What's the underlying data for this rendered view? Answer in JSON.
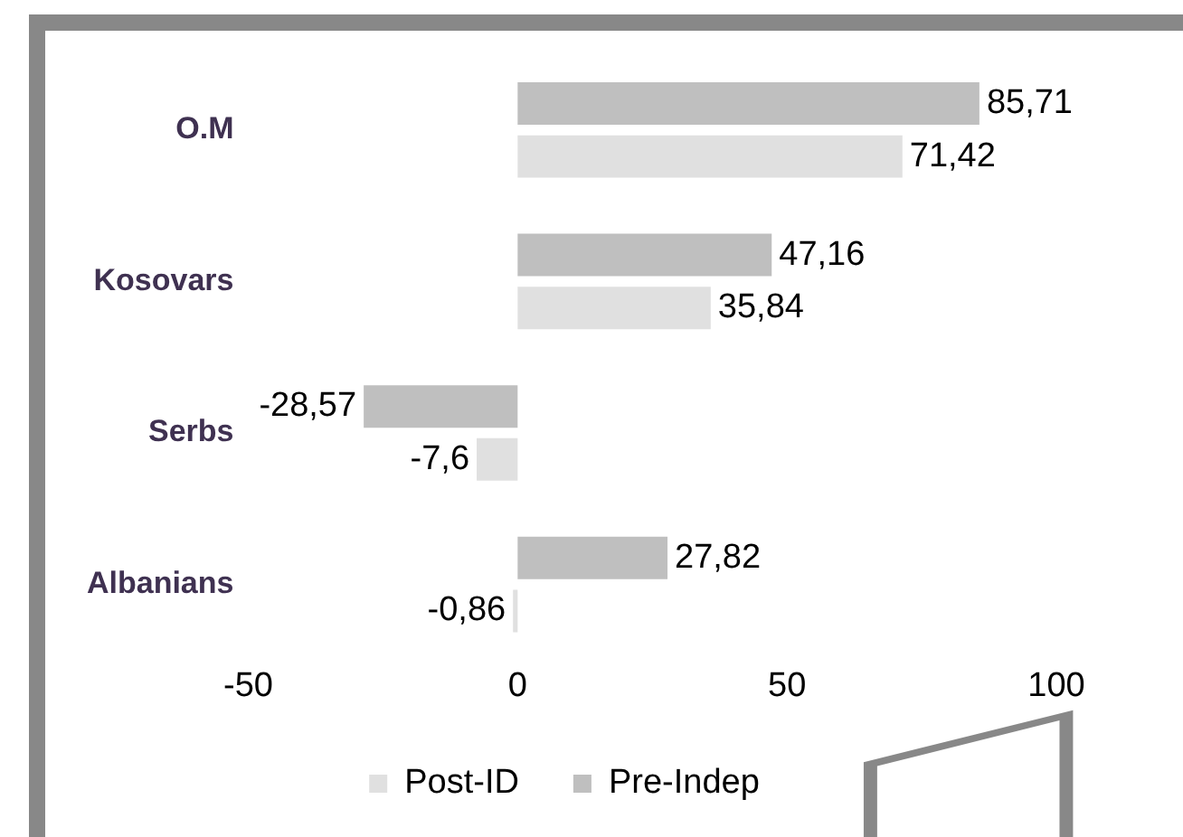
{
  "chart_data": {
    "type": "bar",
    "orientation": "horizontal",
    "categories": [
      "O.M",
      "Kosovars",
      "Serbs",
      "Albanians"
    ],
    "series": [
      {
        "name": "Pre-Indep",
        "color": "#bfbfbf",
        "values": [
          85.71,
          47.16,
          -28.57,
          27.82
        ],
        "value_labels": [
          "85,71",
          "47,16",
          "-28,57",
          "27,82"
        ]
      },
      {
        "name": "Post-ID",
        "color": "#e0e0e0",
        "values": [
          71.42,
          35.84,
          -7.6,
          -0.86
        ],
        "value_labels": [
          "71,42",
          "35,84",
          "-7,6",
          "-0,86"
        ]
      }
    ],
    "xlim": [
      -50,
      100
    ],
    "xticks": [
      -50,
      0,
      50,
      100
    ],
    "grid": false,
    "legend": "bottom"
  }
}
